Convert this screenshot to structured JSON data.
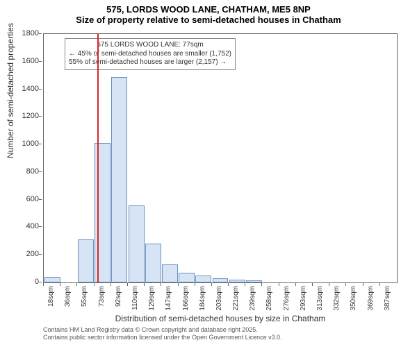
{
  "title_main": "575, LORDS WOOD LANE, CHATHAM, ME5 8NP",
  "title_sub": "Size of property relative to semi-detached houses in Chatham",
  "y_label": "Number of semi-detached properties",
  "x_label": "Distribution of semi-detached houses by size in Chatham",
  "chart": {
    "type": "histogram",
    "ylim": [
      0,
      1800
    ],
    "ytick_step": 200,
    "ytick_labels": [
      "0",
      "200",
      "400",
      "600",
      "800",
      "1000",
      "1200",
      "1400",
      "1600",
      "1800"
    ],
    "x_categories": [
      "18sqm",
      "36sqm",
      "55sqm",
      "73sqm",
      "92sqm",
      "110sqm",
      "129sqm",
      "147sqm",
      "166sqm",
      "184sqm",
      "203sqm",
      "221sqm",
      "239sqm",
      "258sqm",
      "276sqm",
      "293sqm",
      "313sqm",
      "332sqm",
      "350sqm",
      "369sqm",
      "387sqm"
    ],
    "bar_values": [
      40,
      0,
      310,
      1010,
      1490,
      560,
      280,
      130,
      70,
      50,
      30,
      20,
      15,
      0,
      0,
      0,
      0,
      0,
      0,
      0,
      0
    ],
    "bar_fill": "#d6e4f5",
    "bar_stroke": "#6b8fbf",
    "background_color": "#ffffff",
    "border_color": "#666666",
    "ref_line_x_sqm": 77,
    "ref_line_color": "#d92626",
    "annotation": {
      "line1": "← 45% of semi-detached houses are smaller (1,752)",
      "line0": "575 LORDS WOOD LANE: 77sqm",
      "line2": "55% of semi-detached houses are larger (2,157) →"
    }
  },
  "attribution": {
    "line1": "Contains HM Land Registry data © Crown copyright and database right 2025.",
    "line2": "Contains public sector information licensed under the Open Government Licence v3.0."
  }
}
